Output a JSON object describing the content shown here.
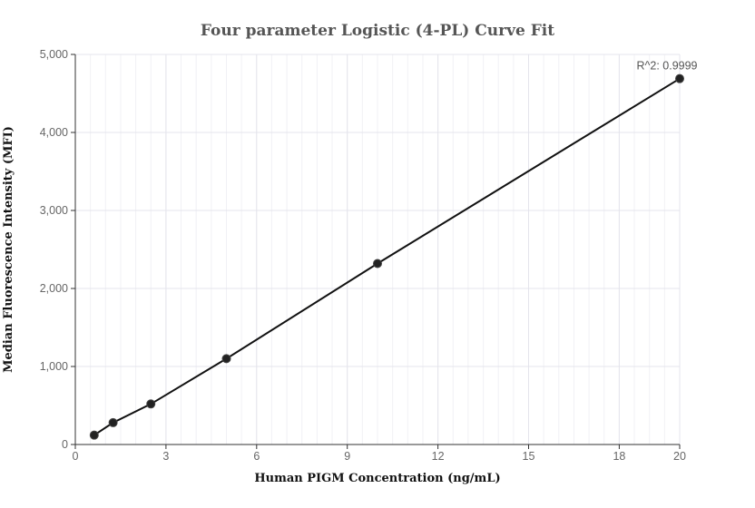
{
  "chart_data": {
    "type": "scatter",
    "title": "Four parameter Logistic (4-PL) Curve Fit",
    "xlabel": "Human PIGM Concentration (ng/mL)",
    "ylabel": "Median Fluorescence Intensity (MFI)",
    "xlim": [
      0,
      20
    ],
    "ylim": [
      0,
      5000
    ],
    "x_ticks": [
      0,
      3,
      6,
      9,
      12,
      15,
      18,
      20
    ],
    "x_tick_labels": [
      "0",
      "3",
      "6",
      "9",
      "12",
      "15",
      "18",
      "20"
    ],
    "y_ticks": [
      0,
      1000,
      2000,
      3000,
      4000,
      5000
    ],
    "y_tick_labels": [
      "0",
      "1,000",
      "2,000",
      "3,000",
      "4,000",
      "5,000"
    ],
    "grid": true,
    "series": [
      {
        "x": [
          0.625,
          1.25,
          2.5,
          5,
          10,
          20
        ],
        "y": [
          120,
          280,
          520,
          1100,
          2320,
          4690
        ]
      }
    ],
    "annotation": "R^2: 0.9999",
    "colors": {
      "curve": "#111111",
      "points": "#222222",
      "grid": "#e4e4ec"
    }
  }
}
